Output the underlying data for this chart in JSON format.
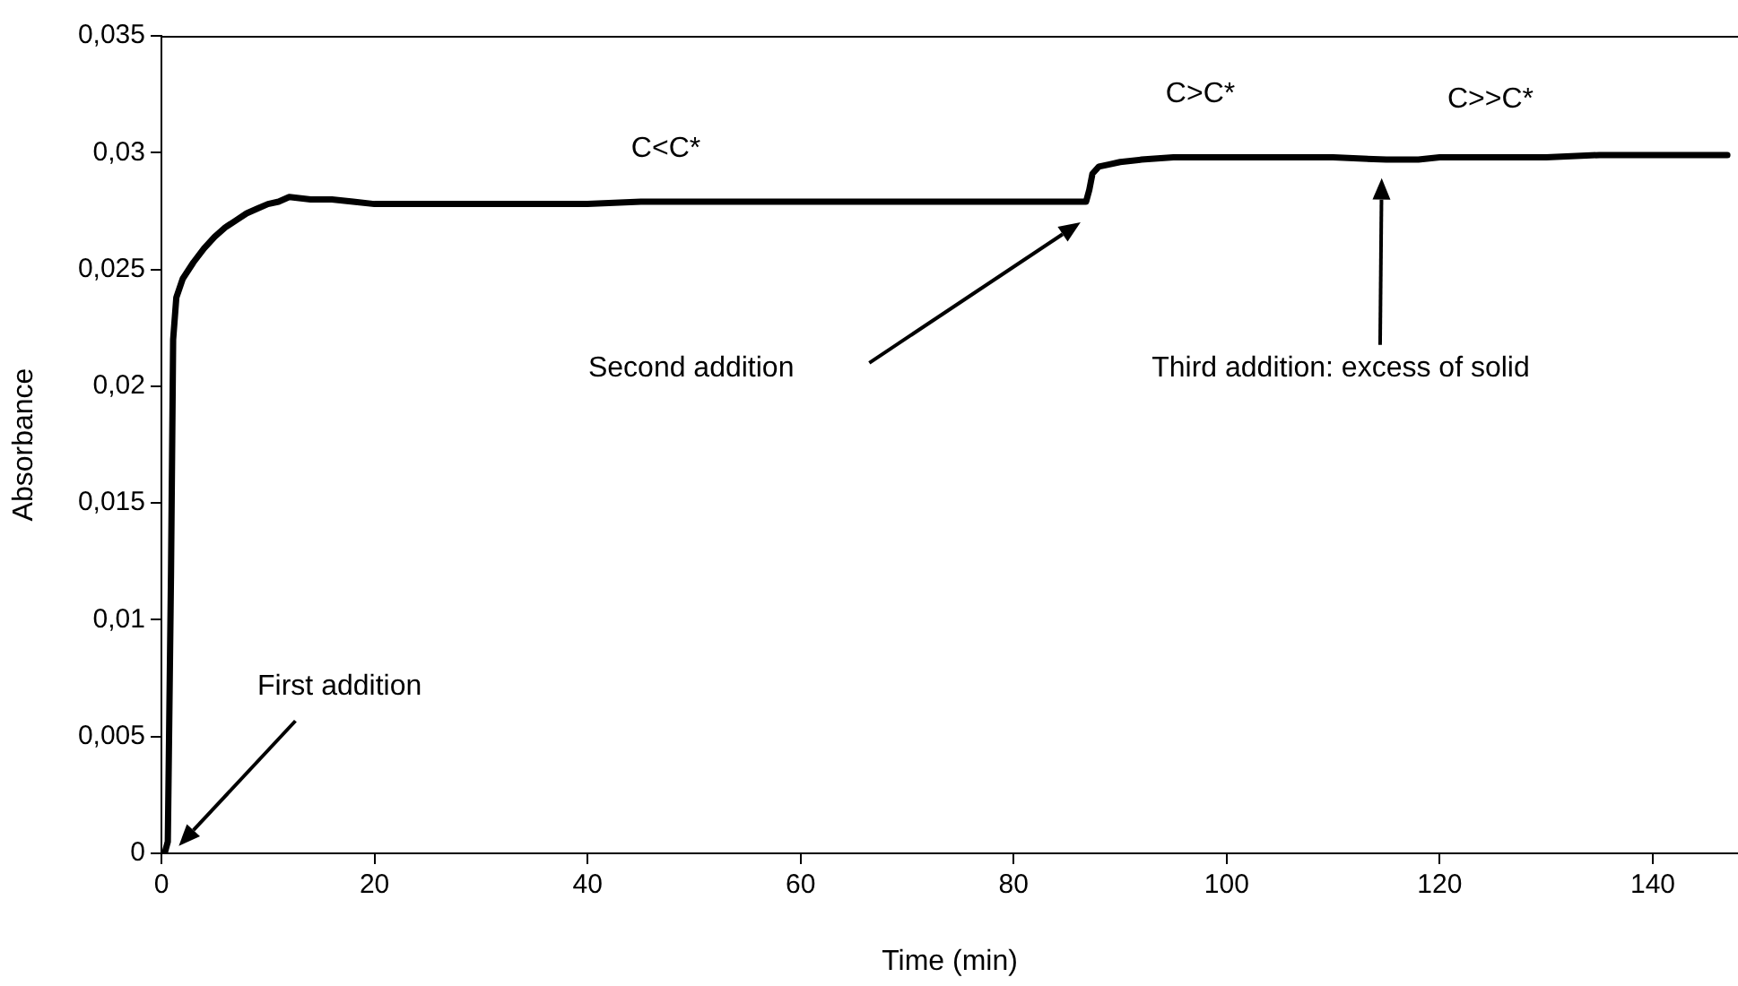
{
  "chart_data": {
    "type": "line",
    "xlabel": "Time (min)",
    "ylabel": "Absorbance",
    "x": [
      0.3,
      0.6,
      0.9,
      1.1,
      1.4,
      2,
      3,
      4,
      5,
      6,
      7,
      8,
      9,
      10,
      11,
      12,
      14,
      16,
      18,
      20,
      25,
      30,
      35,
      40,
      45,
      50,
      55,
      60,
      65,
      70,
      75,
      80,
      85,
      86.8,
      87.1,
      87.4,
      88,
      89,
      90,
      92,
      95,
      100,
      105,
      110,
      115,
      118,
      120,
      125,
      130,
      135,
      140,
      145,
      147
    ],
    "series": [
      {
        "color": "#000000",
        "values": [
          0,
          0.0005,
          0.012,
          0.022,
          0.0238,
          0.0246,
          0.0253,
          0.0259,
          0.0264,
          0.0268,
          0.0271,
          0.0274,
          0.0276,
          0.0278,
          0.0279,
          0.0281,
          0.028,
          0.028,
          0.0279,
          0.0278,
          0.0278,
          0.0278,
          0.0278,
          0.0278,
          0.0279,
          0.0279,
          0.0279,
          0.0279,
          0.0279,
          0.0279,
          0.0279,
          0.0279,
          0.0279,
          0.0279,
          0.0284,
          0.0291,
          0.0294,
          0.0295,
          0.0296,
          0.0297,
          0.0298,
          0.0298,
          0.0298,
          0.0298,
          0.0297,
          0.0297,
          0.0298,
          0.0298,
          0.0298,
          0.0299,
          0.0299,
          0.0299,
          0.0299
        ]
      }
    ],
    "xlim": [
      0,
      148
    ],
    "xticks": [
      0,
      20,
      40,
      60,
      80,
      100,
      120,
      140
    ],
    "ylim": [
      0,
      0.035
    ],
    "yticks": [
      0,
      {
        "value": 0.005,
        "label": "0,005"
      },
      {
        "value": 0.01,
        "label": "0,01"
      },
      {
        "value": 0.015,
        "label": "0,015"
      },
      {
        "value": 0.02,
        "label": "0,02"
      },
      {
        "value": 0.025,
        "label": "0,025"
      },
      {
        "value": 0.03,
        "label": "0,03"
      },
      {
        "value": 0.035,
        "label": "0,035"
      }
    ],
    "grid": false,
    "legend": false,
    "marker": "none",
    "line_style": "solid",
    "annotations": [
      "First addition",
      "Second addition",
      "Third addition: excess of solid",
      "C<C*",
      "C>C*",
      "C>>C*"
    ]
  }
}
